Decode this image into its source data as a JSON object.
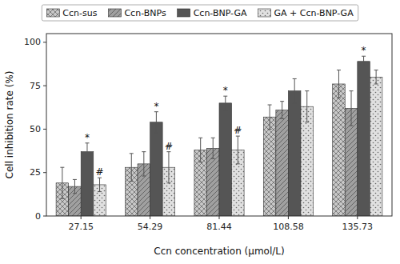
{
  "chart_data": {
    "type": "bar",
    "xlabel": "Ccn concentration (μmol/L)",
    "ylabel": "Cell inhibition rate (%)",
    "categories": [
      "27.15",
      "54.29",
      "81.44",
      "108.58",
      "135.73"
    ],
    "series": [
      {
        "name": "Ccn-sus",
        "color": "#c8c8c8",
        "values": [
          19,
          28,
          38,
          57,
          76
        ],
        "errors": [
          9,
          8,
          7,
          7,
          8
        ]
      },
      {
        "name": "Ccn-BNPs",
        "color": "#a0a0a0",
        "values": [
          17,
          30,
          39,
          61,
          62
        ],
        "errors": [
          4,
          7,
          6,
          5,
          10
        ]
      },
      {
        "name": "Ccn-BNP-GA",
        "color": "#555555",
        "values": [
          37,
          54,
          65,
          72,
          89
        ],
        "errors": [
          5,
          6,
          4,
          7,
          3
        ]
      },
      {
        "name": "GA + Ccn-BNP-GA",
        "color": "#e0e0e0",
        "values": [
          18,
          28,
          38,
          63,
          80
        ],
        "errors": [
          4,
          9,
          8,
          9,
          4
        ]
      }
    ],
    "annotations": [
      {
        "text": "*",
        "series": "Ccn-BNP-GA",
        "category": "27.15"
      },
      {
        "text": "*",
        "series": "Ccn-BNP-GA",
        "category": "54.29"
      },
      {
        "text": "*",
        "series": "Ccn-BNP-GA",
        "category": "81.44"
      },
      {
        "text": "*",
        "series": "Ccn-BNP-GA",
        "category": "135.73"
      },
      {
        "text": "#",
        "series": "GA + Ccn-BNP-GA",
        "category": "27.15"
      },
      {
        "text": "#",
        "series": "GA + Ccn-BNP-GA",
        "category": "54.29"
      },
      {
        "text": "#",
        "series": "GA + Ccn-BNP-GA",
        "category": "81.44"
      }
    ],
    "ylim": [
      0,
      105
    ],
    "yticks": [
      0,
      25,
      50,
      75,
      100
    ],
    "grid": false,
    "legend": "top"
  }
}
